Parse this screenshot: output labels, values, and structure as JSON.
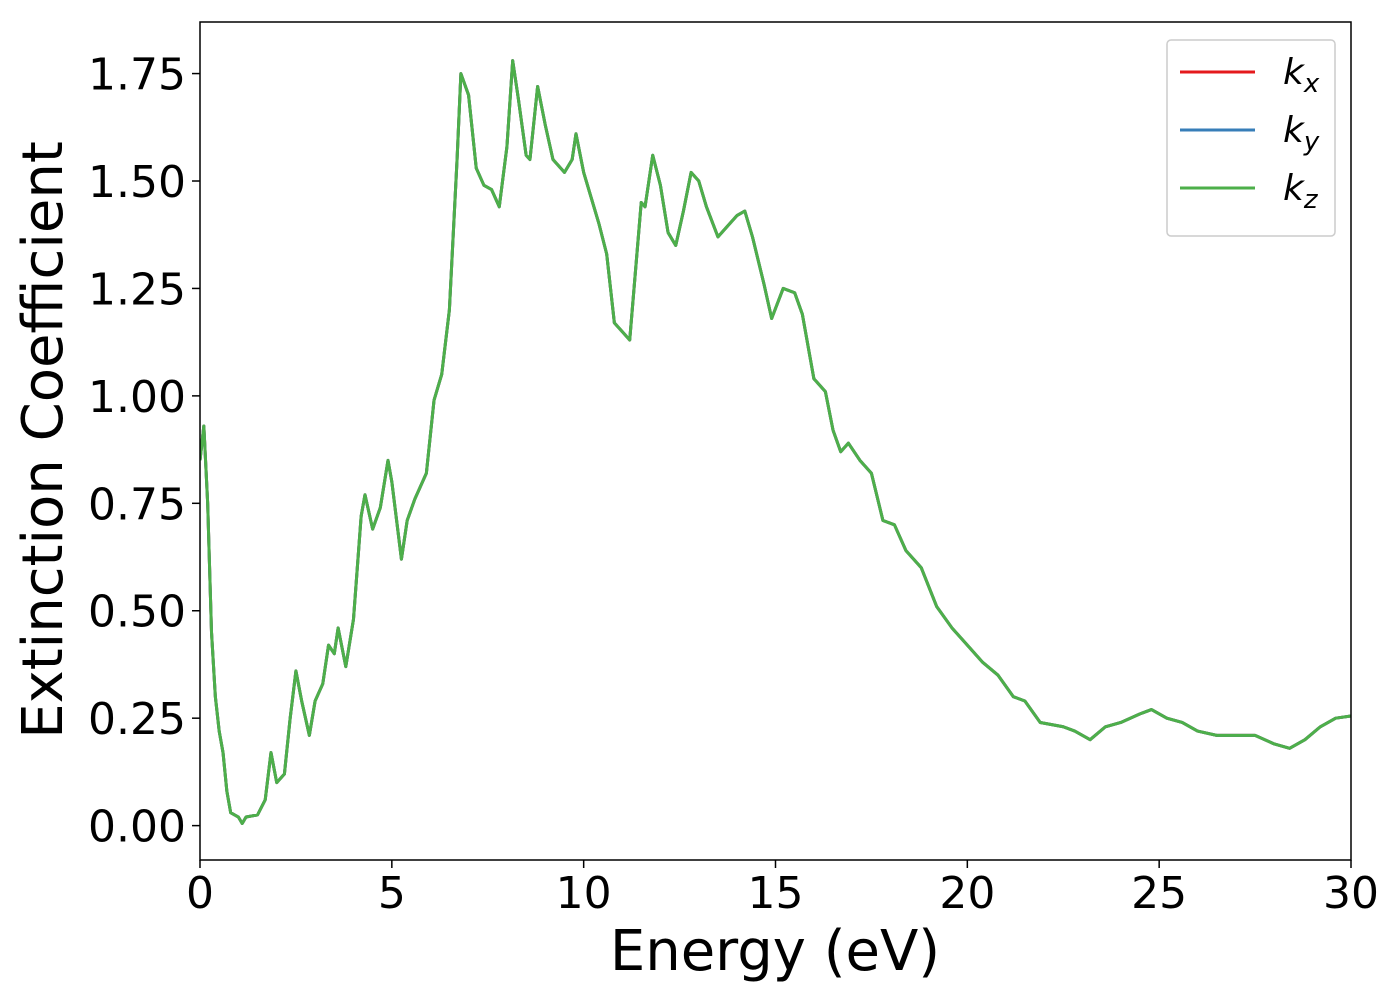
{
  "chart_data": {
    "type": "line",
    "xlabel": "Energy (eV)",
    "ylabel": "Extinction Coefficient",
    "xlim": [
      0,
      30
    ],
    "xticks": [
      0,
      5,
      10,
      15,
      20,
      25,
      30
    ],
    "ylim": [
      -0.08,
      1.87
    ],
    "yticks": [
      {
        "value": 0,
        "label": "0.00"
      },
      {
        "value": 0.25,
        "label": "0.25"
      },
      {
        "value": 0.5,
        "label": "0.50"
      },
      {
        "value": 0.75,
        "label": "0.75"
      },
      {
        "value": 1,
        "label": "1.00"
      },
      {
        "value": 1.25,
        "label": "1.25"
      },
      {
        "value": 1.5,
        "label": "1.50"
      },
      {
        "value": 1.75,
        "label": "1.75"
      }
    ],
    "legend": "upper right",
    "x": [
      0.0,
      0.1,
      0.2,
      0.3,
      0.4,
      0.5,
      0.6,
      0.7,
      0.8,
      1.0,
      1.1,
      1.2,
      1.5,
      1.7,
      1.85,
      2.0,
      2.2,
      2.35,
      2.5,
      2.65,
      2.85,
      3.0,
      3.2,
      3.35,
      3.5,
      3.6,
      3.8,
      4.0,
      4.2,
      4.3,
      4.5,
      4.7,
      4.9,
      5.0,
      5.25,
      5.4,
      5.6,
      5.75,
      5.9,
      6.1,
      6.3,
      6.5,
      6.7,
      6.8,
      7.0,
      7.2,
      7.4,
      7.6,
      7.8,
      8.0,
      8.15,
      8.3,
      8.5,
      8.6,
      8.8,
      9.0,
      9.2,
      9.5,
      9.7,
      9.8,
      10.0,
      10.2,
      10.4,
      10.6,
      10.8,
      11.0,
      11.2,
      11.5,
      11.6,
      11.8,
      12.0,
      12.2,
      12.4,
      12.6,
      12.8,
      13.0,
      13.2,
      13.5,
      13.7,
      14.0,
      14.2,
      14.4,
      14.7,
      14.9,
      15.2,
      15.5,
      15.7,
      16.0,
      16.3,
      16.5,
      16.7,
      16.9,
      17.2,
      17.5,
      17.8,
      18.1,
      18.4,
      18.8,
      19.2,
      19.6,
      20.0,
      20.4,
      20.8,
      21.2,
      21.5,
      21.9,
      22.5,
      22.8,
      23.2,
      23.6,
      24.0,
      24.5,
      24.8,
      25.2,
      25.6,
      26.0,
      26.5,
      27.0,
      27.5,
      28.0,
      28.4,
      28.8,
      29.2,
      29.6,
      30.0
    ],
    "series": [
      {
        "name": "kx",
        "color": "#e41a1c",
        "values": [
          0.85,
          0.93,
          0.75,
          0.45,
          0.3,
          0.22,
          0.17,
          0.08,
          0.03,
          0.02,
          0.005,
          0.02,
          0.025,
          0.06,
          0.17,
          0.1,
          0.12,
          0.25,
          0.36,
          0.29,
          0.21,
          0.29,
          0.33,
          0.42,
          0.4,
          0.46,
          0.37,
          0.48,
          0.72,
          0.77,
          0.69,
          0.74,
          0.85,
          0.8,
          0.62,
          0.71,
          0.76,
          0.79,
          0.82,
          0.99,
          1.05,
          1.2,
          1.55,
          1.75,
          1.7,
          1.53,
          1.49,
          1.48,
          1.44,
          1.58,
          1.78,
          1.69,
          1.56,
          1.55,
          1.72,
          1.63,
          1.55,
          1.52,
          1.55,
          1.61,
          1.52,
          1.46,
          1.4,
          1.33,
          1.17,
          1.15,
          1.13,
          1.45,
          1.44,
          1.56,
          1.49,
          1.38,
          1.35,
          1.43,
          1.52,
          1.5,
          1.44,
          1.37,
          1.39,
          1.42,
          1.43,
          1.37,
          1.26,
          1.18,
          1.25,
          1.24,
          1.19,
          1.04,
          1.01,
          0.92,
          0.87,
          0.89,
          0.85,
          0.82,
          0.71,
          0.7,
          0.64,
          0.6,
          0.51,
          0.46,
          0.42,
          0.38,
          0.35,
          0.3,
          0.29,
          0.24,
          0.23,
          0.22,
          0.2,
          0.23,
          0.24,
          0.26,
          0.27,
          0.25,
          0.24,
          0.22,
          0.21,
          0.21,
          0.21,
          0.19,
          0.18,
          0.2,
          0.23,
          0.25,
          0.255
        ]
      },
      {
        "name": "ky",
        "color": "#377eb8",
        "values": [
          0.85,
          0.93,
          0.75,
          0.45,
          0.3,
          0.22,
          0.17,
          0.08,
          0.03,
          0.02,
          0.005,
          0.02,
          0.025,
          0.06,
          0.17,
          0.1,
          0.12,
          0.25,
          0.36,
          0.29,
          0.21,
          0.29,
          0.33,
          0.42,
          0.4,
          0.46,
          0.37,
          0.48,
          0.72,
          0.77,
          0.69,
          0.74,
          0.85,
          0.8,
          0.62,
          0.71,
          0.76,
          0.79,
          0.82,
          0.99,
          1.05,
          1.2,
          1.55,
          1.75,
          1.7,
          1.53,
          1.49,
          1.48,
          1.44,
          1.58,
          1.78,
          1.69,
          1.56,
          1.55,
          1.72,
          1.63,
          1.55,
          1.52,
          1.55,
          1.61,
          1.52,
          1.46,
          1.4,
          1.33,
          1.17,
          1.15,
          1.13,
          1.45,
          1.44,
          1.56,
          1.49,
          1.38,
          1.35,
          1.43,
          1.52,
          1.5,
          1.44,
          1.37,
          1.39,
          1.42,
          1.43,
          1.37,
          1.26,
          1.18,
          1.25,
          1.24,
          1.19,
          1.04,
          1.01,
          0.92,
          0.87,
          0.89,
          0.85,
          0.82,
          0.71,
          0.7,
          0.64,
          0.6,
          0.51,
          0.46,
          0.42,
          0.38,
          0.35,
          0.3,
          0.29,
          0.24,
          0.23,
          0.22,
          0.2,
          0.23,
          0.24,
          0.26,
          0.27,
          0.25,
          0.24,
          0.22,
          0.21,
          0.21,
          0.21,
          0.19,
          0.18,
          0.2,
          0.23,
          0.25,
          0.255
        ]
      },
      {
        "name": "kz",
        "color": "#4daf4a",
        "values": [
          0.85,
          0.93,
          0.75,
          0.45,
          0.3,
          0.22,
          0.17,
          0.08,
          0.03,
          0.02,
          0.005,
          0.02,
          0.025,
          0.06,
          0.17,
          0.1,
          0.12,
          0.25,
          0.36,
          0.29,
          0.21,
          0.29,
          0.33,
          0.42,
          0.4,
          0.46,
          0.37,
          0.48,
          0.72,
          0.77,
          0.69,
          0.74,
          0.85,
          0.8,
          0.62,
          0.71,
          0.76,
          0.79,
          0.82,
          0.99,
          1.05,
          1.2,
          1.55,
          1.75,
          1.7,
          1.53,
          1.49,
          1.48,
          1.44,
          1.58,
          1.78,
          1.69,
          1.56,
          1.55,
          1.72,
          1.63,
          1.55,
          1.52,
          1.55,
          1.61,
          1.52,
          1.46,
          1.4,
          1.33,
          1.17,
          1.15,
          1.13,
          1.45,
          1.44,
          1.56,
          1.49,
          1.38,
          1.35,
          1.43,
          1.52,
          1.5,
          1.44,
          1.37,
          1.39,
          1.42,
          1.43,
          1.37,
          1.26,
          1.18,
          1.25,
          1.24,
          1.19,
          1.04,
          1.01,
          0.92,
          0.87,
          0.89,
          0.85,
          0.82,
          0.71,
          0.7,
          0.64,
          0.6,
          0.51,
          0.46,
          0.42,
          0.38,
          0.35,
          0.3,
          0.29,
          0.24,
          0.23,
          0.22,
          0.2,
          0.23,
          0.24,
          0.26,
          0.27,
          0.25,
          0.24,
          0.22,
          0.21,
          0.21,
          0.21,
          0.19,
          0.18,
          0.2,
          0.23,
          0.25,
          0.255
        ]
      }
    ]
  }
}
